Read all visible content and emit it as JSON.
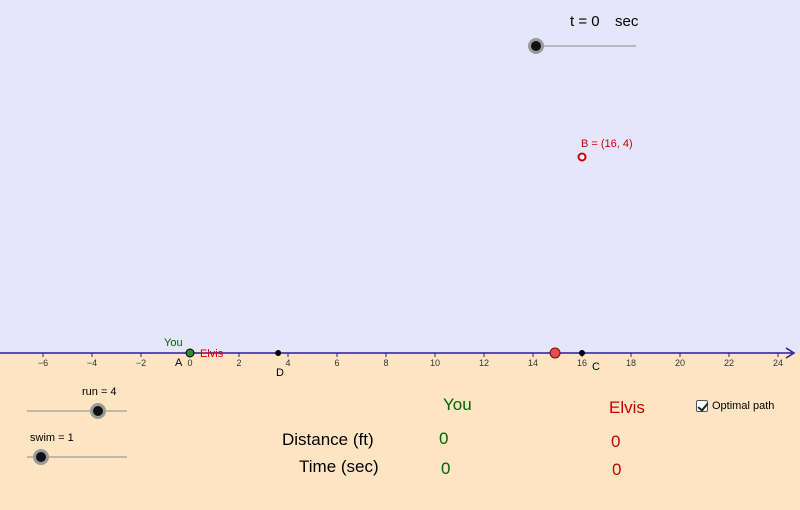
{
  "colors": {
    "sky": "#e6e6fb",
    "ground": "#fde5c4",
    "axis": "#2a1e8c",
    "you": "#006400",
    "elvis": "#cc0000"
  },
  "time_slider": {
    "label": "t = 0",
    "unit": "sec",
    "value": 0
  },
  "run_slider": {
    "label": "run = 4",
    "value": 4
  },
  "swim_slider": {
    "label": "swim = 1",
    "value": 1
  },
  "axis": {
    "x_range": [
      -8,
      25
    ],
    "ticks": [
      -6,
      -4,
      -2,
      0,
      2,
      4,
      6,
      8,
      10,
      12,
      14,
      16,
      18,
      20,
      22,
      24
    ],
    "tick_labels": [
      "−6",
      "−4",
      "−2",
      "0",
      "2",
      "4",
      "6",
      "8",
      "10",
      "12",
      "14",
      "16",
      "18",
      "20",
      "22",
      "24"
    ]
  },
  "points": {
    "A": {
      "label": "A",
      "x": 0,
      "y": 0
    },
    "D": {
      "label": "D",
      "x": 3.6,
      "y": 0
    },
    "C": {
      "label": "C",
      "x": 16,
      "y": 0
    },
    "B": {
      "label": "B = (16, 4)",
      "x": 16,
      "y": 4
    },
    "runner": {
      "x": 14.9,
      "y": 0
    }
  },
  "labels": {
    "you_marker": "You",
    "elvis_marker": "Elvis"
  },
  "table": {
    "you_header": "You",
    "elvis_header": "Elvis",
    "distance_label": "Distance (ft)",
    "time_label": "Time (sec)",
    "you_distance": "0",
    "elvis_distance": "0",
    "you_time": "0",
    "elvis_time": "0"
  },
  "optimal_path": {
    "label": "Optimal path",
    "checked": true
  }
}
